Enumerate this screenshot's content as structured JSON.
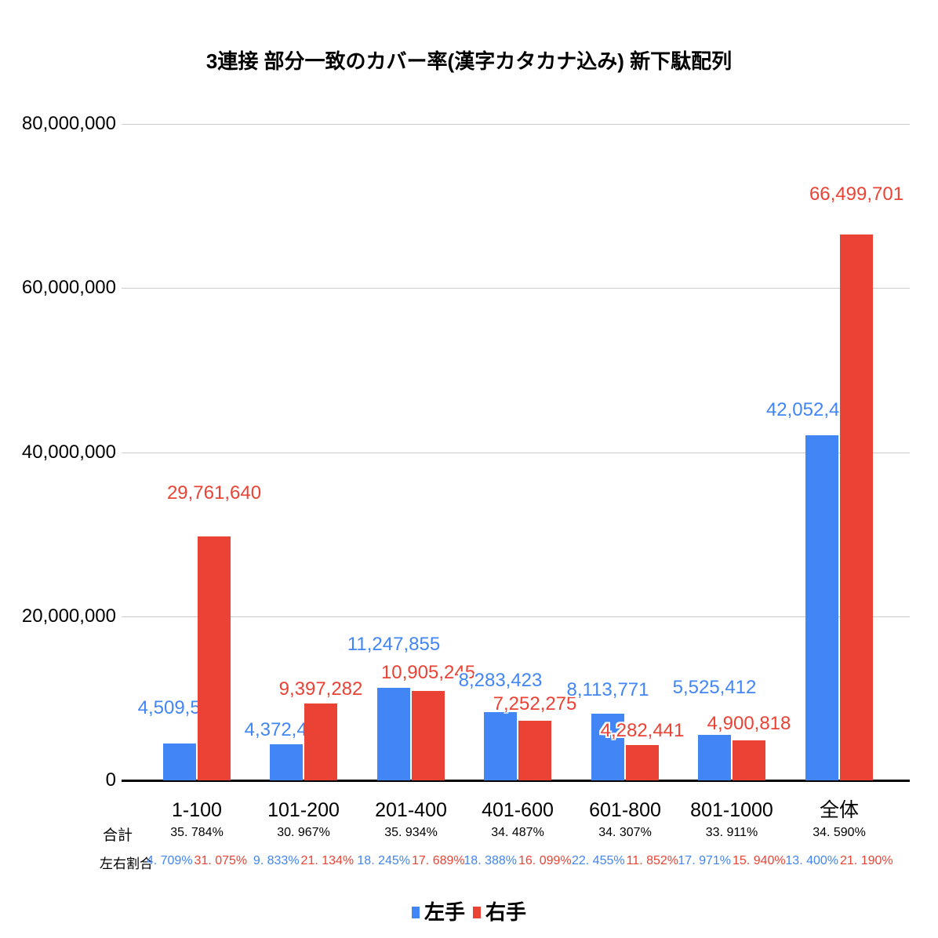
{
  "title": "3連接 部分一致のカバー率(漢字カタカナ込み) 新下駄配列",
  "legend": {
    "left": "左手",
    "right": "右手"
  },
  "row_headers": {
    "total": "合計",
    "ratio": "左右割合"
  },
  "colors": {
    "left_hand": "#4285F4",
    "right_hand": "#EA4335",
    "gridline": "#CCCCCC",
    "axis": "#000000",
    "text": "#000000"
  },
  "chart_data": {
    "type": "bar",
    "title": "3連接 部分一致のカバー率(漢字カタカナ込み) 新下駄配列",
    "categories": [
      "1-100",
      "101-200",
      "201-400",
      "401-600",
      "601-800",
      "801-1000",
      "全体"
    ],
    "series": [
      {
        "name": "左手",
        "color": "#4285F4",
        "values": [
          4509536,
          4372442,
          11247855,
          8283423,
          8113771,
          5525412,
          42052439
        ],
        "labels": [
          "4,509,536",
          "4,372,442",
          "11,247,855",
          "8,283,423",
          "8,113,771",
          "5,525,412",
          "42,052,439"
        ]
      },
      {
        "name": "右手",
        "color": "#EA4335",
        "values": [
          29761640,
          9397282,
          10905245,
          7252275,
          4282441,
          4900818,
          66499701
        ],
        "labels": [
          "29,761,640",
          "9,397,282",
          "10,905,245",
          "7,252,275",
          "4,282,441",
          "4,900,818",
          "66,499,701"
        ]
      }
    ],
    "total_percent": [
      "35. 784%",
      "30. 967%",
      "35. 934%",
      "34. 487%",
      "34. 307%",
      "33. 911%",
      "34. 590%"
    ],
    "ratio_percent": {
      "left": [
        "4. 709%",
        "9. 833%",
        "18. 245%",
        "18. 388%",
        "22. 455%",
        "17. 971%",
        "13. 400%"
      ],
      "right": [
        "31. 075%",
        "21. 134%",
        "17. 689%",
        "16. 099%",
        "11. 852%",
        "15. 940%",
        "21. 190%"
      ]
    },
    "xlabel": "",
    "ylabel": "",
    "ylim": [
      0,
      80000000
    ],
    "y_ticks": [
      "0",
      "20,000,000",
      "40,000,000",
      "60,000,000",
      "80,000,000"
    ],
    "grid": true,
    "legend_position": "bottom"
  }
}
